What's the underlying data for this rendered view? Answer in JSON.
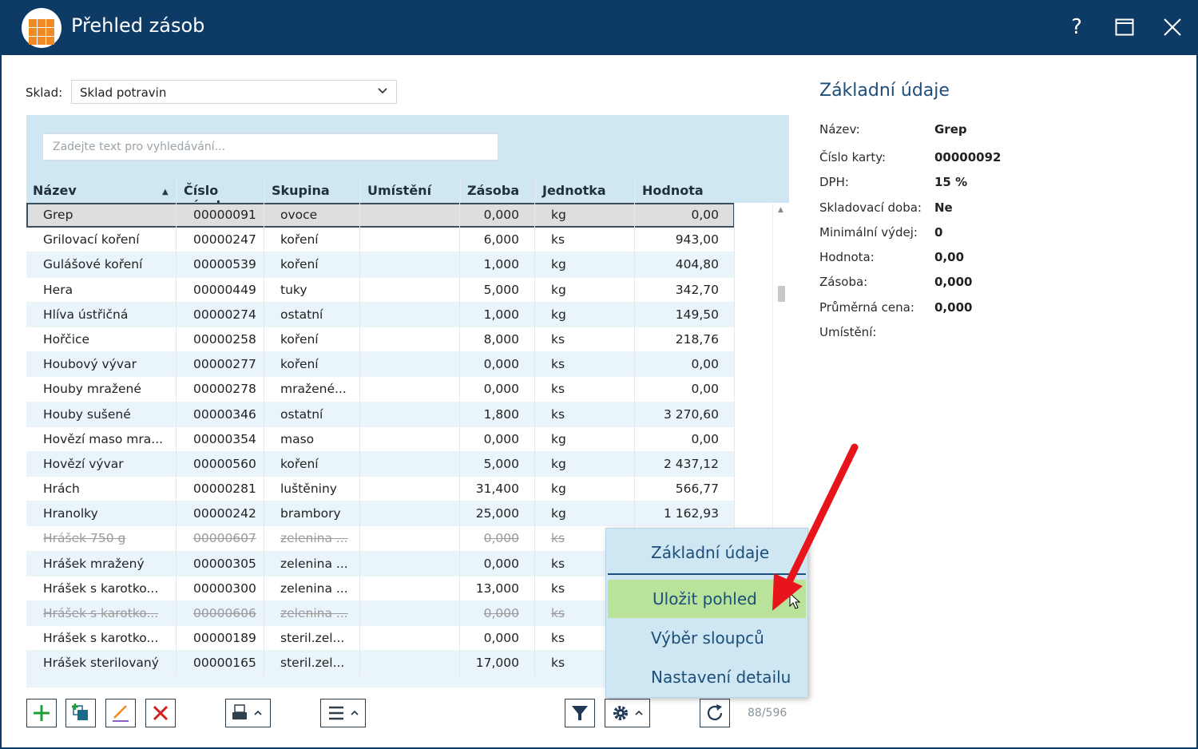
{
  "window": {
    "title": "Přehled zásob",
    "help": "?"
  },
  "filter": {
    "sklad_label": "Sklad:",
    "sklad_value": "Sklad potravin",
    "search_placeholder": "Zadejte text pro vyhledávání..."
  },
  "columns": [
    "Název",
    "Číslo zásoby",
    "Skupina",
    "Umístění",
    "Zásoba",
    "Jednotka",
    "Hodnota"
  ],
  "sort": {
    "column": "Název",
    "direction": "ascending"
  },
  "rows": [
    {
      "name": "Grep",
      "num": "00000091",
      "group": "ovoce",
      "place": "",
      "stock": "0,000",
      "unit": "kg",
      "value": "0,00",
      "selected": true
    },
    {
      "name": "Grilovací koření",
      "num": "00000247",
      "group": "koření",
      "place": "",
      "stock": "6,000",
      "unit": "ks",
      "value": "943,00"
    },
    {
      "name": "Gulášové koření",
      "num": "00000539",
      "group": "koření",
      "place": "",
      "stock": "1,000",
      "unit": "kg",
      "value": "404,80"
    },
    {
      "name": "Hera",
      "num": "00000449",
      "group": "tuky",
      "place": "",
      "stock": "5,000",
      "unit": "kg",
      "value": "342,70"
    },
    {
      "name": "Hlíva ústřičná",
      "num": "00000274",
      "group": "ostatní",
      "place": "",
      "stock": "1,000",
      "unit": "kg",
      "value": "149,50"
    },
    {
      "name": "Hořčice",
      "num": "00000258",
      "group": "koření",
      "place": "",
      "stock": "8,000",
      "unit": "ks",
      "value": "218,76"
    },
    {
      "name": "Houbový vývar",
      "num": "00000277",
      "group": "koření",
      "place": "",
      "stock": "0,000",
      "unit": "ks",
      "value": "0,00"
    },
    {
      "name": "Houby mražené",
      "num": "00000278",
      "group": "mražené...",
      "place": "",
      "stock": "0,000",
      "unit": "ks",
      "value": "0,00"
    },
    {
      "name": "Houby sušené",
      "num": "00000346",
      "group": "ostatní",
      "place": "",
      "stock": "1,800",
      "unit": "ks",
      "value": "3 270,60"
    },
    {
      "name": "Hovězí maso mra...",
      "num": "00000354",
      "group": "maso",
      "place": "",
      "stock": "0,000",
      "unit": "kg",
      "value": "0,00"
    },
    {
      "name": "Hovězí vývar",
      "num": "00000560",
      "group": "koření",
      "place": "",
      "stock": "5,000",
      "unit": "kg",
      "value": "2 437,12"
    },
    {
      "name": "Hrách",
      "num": "00000281",
      "group": "luštěniny",
      "place": "",
      "stock": "31,400",
      "unit": "kg",
      "value": "566,77"
    },
    {
      "name": "Hranolky",
      "num": "00000242",
      "group": "brambory",
      "place": "",
      "stock": "25,000",
      "unit": "kg",
      "value": "1 162,93"
    },
    {
      "name": "Hrášek 750 g",
      "num": "00000607",
      "group": "zelenina ...",
      "place": "",
      "stock": "0,000",
      "unit": "ks",
      "value": "",
      "deleted": true
    },
    {
      "name": "Hrášek mražený",
      "num": "00000305",
      "group": "zelenina ...",
      "place": "",
      "stock": "0,000",
      "unit": "ks",
      "value": ""
    },
    {
      "name": "Hrášek s karotko...",
      "num": "00000300",
      "group": "zelenina ...",
      "place": "",
      "stock": "13,000",
      "unit": "ks",
      "value": ""
    },
    {
      "name": "Hrášek s karotko...",
      "num": "00000606",
      "group": "zelenina ...",
      "place": "",
      "stock": "0,000",
      "unit": "ks",
      "value": "",
      "deleted": true
    },
    {
      "name": "Hrášek s karotko...",
      "num": "00000189",
      "group": "steril.zel...",
      "place": "",
      "stock": "0,000",
      "unit": "ks",
      "value": ""
    },
    {
      "name": "Hrášek sterilovaný",
      "num": "00000165",
      "group": "steril.zel...",
      "place": "",
      "stock": "17,000",
      "unit": "ks",
      "value": ""
    }
  ],
  "context_menu": {
    "items": [
      "Základní údaje",
      "Uložit pohled",
      "Výběr sloupců",
      "Nastavení detailu"
    ],
    "highlighted": "Uložit pohled"
  },
  "record_count": "88/596",
  "detail": {
    "title": "Základní údaje",
    "fields": [
      {
        "label": "Název:",
        "value": "Grep"
      },
      {
        "label": "Číslo karty:",
        "value": "00000092"
      },
      {
        "label": "DPH:",
        "value": "15 %"
      },
      {
        "label": "Skladovací doba:",
        "value": "Ne"
      },
      {
        "label": "Minimální výdej:",
        "value": "0"
      },
      {
        "label": "Hodnota:",
        "value": "0,00"
      },
      {
        "label": "Zásoba:",
        "value": "0,000"
      },
      {
        "label": "Průměrná cena:",
        "value": "0,000"
      },
      {
        "label": "Umístění:",
        "value": ""
      }
    ]
  },
  "colors": {
    "titlebar": "#0d3b66",
    "accent": "#1c4e7a",
    "grid_header": "#cfe6f3",
    "menu_highlight": "#b9e39a",
    "arrow": "#e8141c",
    "add_icon": "#1e9e3a",
    "delete_icon": "#d42020",
    "edit_icon": "#f08a24"
  },
  "icons": [
    "app-logo-icon",
    "help-icon",
    "maximize-icon",
    "close-icon",
    "chevron-down-icon",
    "sort-asc-icon",
    "add-icon",
    "copy-add-icon",
    "edit-icon",
    "delete-icon",
    "print-icon",
    "menu-icon",
    "filter-icon",
    "gear-icon",
    "refresh-icon",
    "cursor-icon",
    "arrow-annotation"
  ]
}
